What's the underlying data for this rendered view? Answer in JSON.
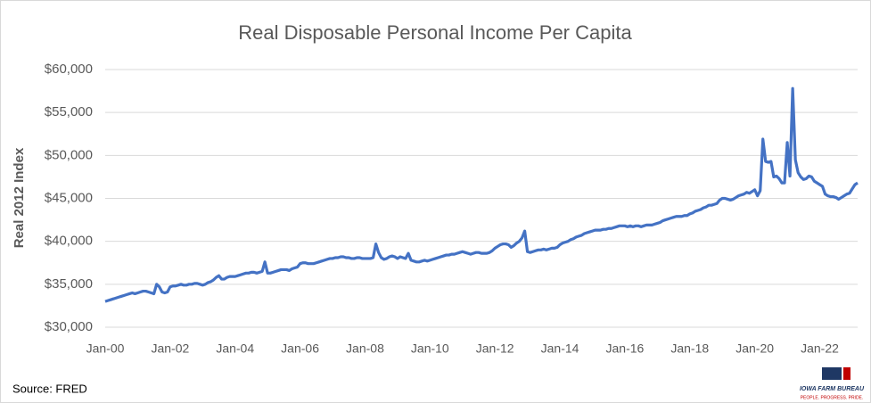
{
  "chart_data": {
    "type": "line",
    "title": "Real Disposable Personal Income Per Capita",
    "y_label": "Real 2012 Index",
    "source": "Source: FRED",
    "logo": {
      "name": "IOWA FARM BUREAU",
      "tagline": "PEOPLE. PROGRESS. PRIDE."
    },
    "grid": true,
    "ylim": [
      30000,
      60000
    ],
    "yticks": [
      {
        "value": 30000,
        "label": "$30,000"
      },
      {
        "value": 35000,
        "label": "$35,000"
      },
      {
        "value": 40000,
        "label": "$40,000"
      },
      {
        "value": 45000,
        "label": "$45,000"
      },
      {
        "value": 50000,
        "label": "$50,000"
      },
      {
        "value": 55000,
        "label": "$55,000"
      },
      {
        "value": 60000,
        "label": "$60,000"
      }
    ],
    "categories": [
      "Jan-00",
      null,
      null,
      null,
      null,
      null,
      null,
      null,
      null,
      null,
      null,
      null,
      null,
      null,
      null,
      null,
      null,
      null,
      null,
      null,
      null,
      null,
      null,
      null,
      "Jan-02",
      null,
      null,
      null,
      null,
      null,
      null,
      null,
      null,
      null,
      null,
      null,
      null,
      null,
      null,
      null,
      null,
      null,
      null,
      null,
      null,
      null,
      null,
      null,
      "Jan-04",
      null,
      null,
      null,
      null,
      null,
      null,
      null,
      null,
      null,
      null,
      null,
      null,
      null,
      null,
      null,
      null,
      null,
      null,
      null,
      null,
      null,
      null,
      null,
      "Jan-06",
      null,
      null,
      null,
      null,
      null,
      null,
      null,
      null,
      null,
      null,
      null,
      null,
      null,
      null,
      null,
      null,
      null,
      null,
      null,
      null,
      null,
      null,
      null,
      "Jan-08",
      null,
      null,
      null,
      null,
      null,
      null,
      null,
      null,
      null,
      null,
      null,
      null,
      null,
      null,
      null,
      null,
      null,
      null,
      null,
      null,
      null,
      null,
      null,
      "Jan-10",
      null,
      null,
      null,
      null,
      null,
      null,
      null,
      null,
      null,
      null,
      null,
      null,
      null,
      null,
      null,
      null,
      null,
      null,
      null,
      null,
      null,
      null,
      null,
      "Jan-12",
      null,
      null,
      null,
      null,
      null,
      null,
      null,
      null,
      null,
      null,
      null,
      null,
      null,
      null,
      null,
      null,
      null,
      null,
      null,
      null,
      null,
      null,
      null,
      "Jan-14",
      null,
      null,
      null,
      null,
      null,
      null,
      null,
      null,
      null,
      null,
      null,
      null,
      null,
      null,
      null,
      null,
      null,
      null,
      null,
      null,
      null,
      null,
      null,
      "Jan-16",
      null,
      null,
      null,
      null,
      null,
      null,
      null,
      null,
      null,
      null,
      null,
      null,
      null,
      null,
      null,
      null,
      null,
      null,
      null,
      null,
      null,
      null,
      null,
      "Jan-18",
      null,
      null,
      null,
      null,
      null,
      null,
      null,
      null,
      null,
      null,
      null,
      null,
      null,
      null,
      null,
      null,
      null,
      null,
      null,
      null,
      null,
      null,
      null,
      "Jan-20",
      null,
      null,
      null,
      null,
      null,
      null,
      null,
      null,
      null,
      null,
      null,
      null,
      null,
      null,
      null,
      null,
      null,
      null,
      null,
      null,
      null,
      null,
      null,
      "Jan-22",
      null,
      null,
      null,
      null,
      null,
      null,
      null,
      null,
      null,
      null,
      null,
      null,
      null,
      null
    ],
    "series": [
      {
        "name": "Real Disposable Personal Income Per Capita",
        "color": "#4472c4",
        "values": [
          33000,
          33100,
          33200,
          33300,
          33400,
          33500,
          33600,
          33700,
          33800,
          33900,
          34000,
          33900,
          34000,
          34100,
          34200,
          34200,
          34100,
          34000,
          33900,
          35000,
          34700,
          34100,
          34000,
          34100,
          34700,
          34800,
          34800,
          34900,
          35000,
          34900,
          34900,
          35000,
          35000,
          35100,
          35100,
          35000,
          34900,
          35000,
          35200,
          35300,
          35500,
          35800,
          36000,
          35600,
          35600,
          35800,
          35900,
          35900,
          35900,
          36000,
          36100,
          36200,
          36300,
          36300,
          36400,
          36400,
          36300,
          36400,
          36500,
          37600,
          36300,
          36300,
          36400,
          36500,
          36600,
          36700,
          36700,
          36700,
          36600,
          36800,
          36900,
          37000,
          37400,
          37500,
          37500,
          37400,
          37400,
          37400,
          37500,
          37600,
          37700,
          37800,
          37900,
          38000,
          38000,
          38100,
          38100,
          38200,
          38200,
          38100,
          38100,
          38000,
          38000,
          38100,
          38100,
          38000,
          38000,
          38000,
          38000,
          38100,
          39700,
          38700,
          38100,
          37900,
          38000,
          38200,
          38300,
          38200,
          38000,
          38200,
          38100,
          38000,
          38600,
          37800,
          37700,
          37600,
          37600,
          37700,
          37800,
          37700,
          37800,
          37900,
          38000,
          38100,
          38200,
          38300,
          38400,
          38400,
          38500,
          38500,
          38600,
          38700,
          38800,
          38700,
          38600,
          38500,
          38600,
          38700,
          38700,
          38600,
          38600,
          38600,
          38700,
          38900,
          39200,
          39400,
          39600,
          39700,
          39700,
          39600,
          39300,
          39500,
          39800,
          40000,
          40400,
          41200,
          38800,
          38700,
          38800,
          38900,
          39000,
          39000,
          39100,
          39000,
          39100,
          39200,
          39200,
          39300,
          39600,
          39800,
          39900,
          40000,
          40200,
          40300,
          40500,
          40600,
          40700,
          40900,
          41000,
          41100,
          41200,
          41300,
          41300,
          41300,
          41400,
          41400,
          41500,
          41500,
          41600,
          41700,
          41800,
          41800,
          41800,
          41700,
          41800,
          41700,
          41800,
          41800,
          41700,
          41800,
          41900,
          41900,
          41900,
          42000,
          42100,
          42200,
          42400,
          42500,
          42600,
          42700,
          42800,
          42900,
          42900,
          42900,
          43000,
          43000,
          43200,
          43300,
          43500,
          43600,
          43700,
          43900,
          44000,
          44200,
          44200,
          44300,
          44400,
          44800,
          45000,
          45000,
          44900,
          44800,
          44900,
          45100,
          45300,
          45400,
          45500,
          45700,
          45600,
          45800,
          46000,
          45300,
          45900,
          51900,
          49300,
          49200,
          49300,
          47500,
          47600,
          47300,
          46800,
          46800,
          51500,
          47600,
          57800,
          49500,
          48000,
          47500,
          47200,
          47300,
          47600,
          47500,
          47000,
          46800,
          46600,
          46400,
          45500,
          45300,
          45200,
          45200,
          45100,
          44900,
          45100,
          45300,
          45500,
          45600,
          46100,
          46600,
          46800
        ]
      }
    ]
  }
}
